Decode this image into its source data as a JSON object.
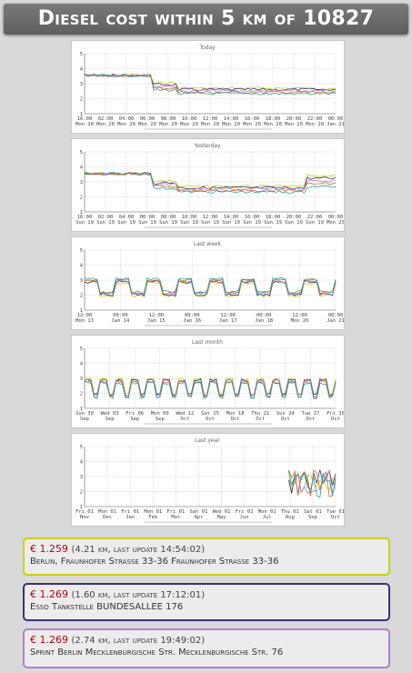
{
  "header": {
    "title": "Diesel cost within 5 km of 10827"
  },
  "charts": [
    {
      "label": "Today",
      "ticks": [
        "16:00",
        "02:00",
        "04:00",
        "06:00",
        "08:00",
        "10:00",
        "12:00",
        "14:00",
        "16:00",
        "18:00",
        "20:00",
        "22:00",
        "00:00"
      ],
      "day_labels": [
        "Mon 20",
        "Mon 20",
        "Mon 20",
        "Mon 20",
        "Mon 20",
        "Mon 20",
        "Mon 20",
        "Mon 20",
        "Mon 20",
        "Mon 20",
        "Mon 20",
        "Mon 20",
        "Jan 21"
      ]
    },
    {
      "label": "Yesterday",
      "ticks": [
        "16:00",
        "02:00",
        "04:00",
        "06:00",
        "08:00",
        "10:00",
        "12:00",
        "14:00",
        "16:00",
        "18:00",
        "20:00",
        "22:00",
        "00:00"
      ],
      "day_labels": [
        "Sun 19",
        "Sun 19",
        "Sun 19",
        "Sun 19",
        "Sun 19",
        "Sun 19",
        "Sun 19",
        "Sun 19",
        "Sun 19",
        "Sun 19",
        "Sun 19",
        "Sun 19",
        "Mon 20"
      ]
    },
    {
      "label": "Last week",
      "ticks": [
        "12:00",
        "00:00",
        "12:00",
        "00:00",
        "12:00",
        "00:00",
        "12:00",
        "00:00"
      ],
      "day_labels": [
        "Mon 13",
        "Jan 14",
        "Jan 15",
        "Jan 16",
        "Jan 17",
        "Jan 18",
        "Mon 20",
        "Jan 21"
      ]
    },
    {
      "label": "Last month",
      "ticks": [
        "Sun 30",
        "Wed 03",
        "Fri 06",
        "Mon 09",
        "Wed 12",
        "Sat 15",
        "Mon 18",
        "Thu 21",
        "Sun 24",
        "Tue 27",
        "Fri 30"
      ],
      "day_labels": [
        "Sep",
        "Sep",
        "Sep",
        "Sep",
        "Oct",
        "Oct",
        "Oct",
        "Oct",
        "Oct",
        "Oct",
        "Oct"
      ]
    },
    {
      "label": "Last year",
      "ticks": [
        "Fri 01",
        "Mon 01",
        "Fri 01",
        "Mon 01",
        "Fri 01",
        "Sat 01",
        "Wed 01",
        "Fri 01",
        "Mon 01",
        "Thu 01",
        "Sat 01",
        "Tue 01"
      ],
      "day_labels": [
        "Nov",
        "Dec",
        "Jan",
        "Feb",
        "Mar",
        "Apr",
        "May",
        "Jun",
        "Jul",
        "Aug",
        "Sep",
        "Oct"
      ]
    }
  ],
  "stations": [
    {
      "price": "€ 1.259",
      "meta": "(4.21 km, last update 14:54:02)",
      "address": "Berlin, Fraunhofer Straße 33-36 Fraunhofer Straße 33-36",
      "color": "#c8d400"
    },
    {
      "price": "€ 1.269",
      "meta": "(1.60 km, last update 17:12:01)",
      "address": "Esso Tankstelle BUNDESALLEE 176",
      "color": "#3a2f80"
    },
    {
      "price": "€ 1.269",
      "meta": "(2.74 km, last update 19:49:02)",
      "address": "Sprint Berlin Mecklenburgische Str. Mecklenburgische Str. 76",
      "color": "#b07cd8"
    }
  ],
  "colors": {
    "series": [
      "#c8d400",
      "#3a2f80",
      "#b07cd8",
      "#d07020",
      "#2aa0a0",
      "#8a8a8a",
      "#e03050"
    ]
  }
}
